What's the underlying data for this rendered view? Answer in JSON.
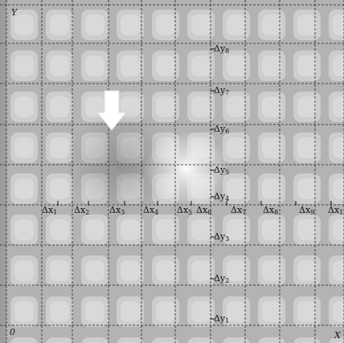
{
  "axes": {
    "x_label": "X",
    "y_label": "Y",
    "origin_label": "0"
  },
  "delta_x_labels": [
    {
      "base": "Δx",
      "sub": "1"
    },
    {
      "base": "Δx",
      "sub": "2"
    },
    {
      "base": "Δx",
      "sub": "3"
    },
    {
      "base": "Δx",
      "sub": "4"
    },
    {
      "base": "Δx",
      "sub": "5"
    },
    {
      "base": "Δx",
      "sub": "6"
    },
    {
      "base": "Δx",
      "sub": "7"
    },
    {
      "base": "Δx",
      "sub": "8"
    },
    {
      "base": "Δx",
      "sub": "9"
    },
    {
      "base": "Δx",
      "sub": "1"
    }
  ],
  "delta_y_labels": [
    {
      "base": "Δy",
      "sub": "1"
    },
    {
      "base": "Δy",
      "sub": "2"
    },
    {
      "base": "Δy",
      "sub": "3"
    },
    {
      "base": "Δy",
      "sub": "4"
    },
    {
      "base": "Δy",
      "sub": "5"
    },
    {
      "base": "Δy",
      "sub": "6"
    },
    {
      "base": "Δy",
      "sub": "7"
    },
    {
      "base": "Δy",
      "sub": "8"
    }
  ],
  "marker": {
    "icon": "down-arrow-icon",
    "color": "#ffffff"
  },
  "colors": {
    "background": "#b9b9b9",
    "grid": "#222222",
    "spot": "#ffffff"
  }
}
